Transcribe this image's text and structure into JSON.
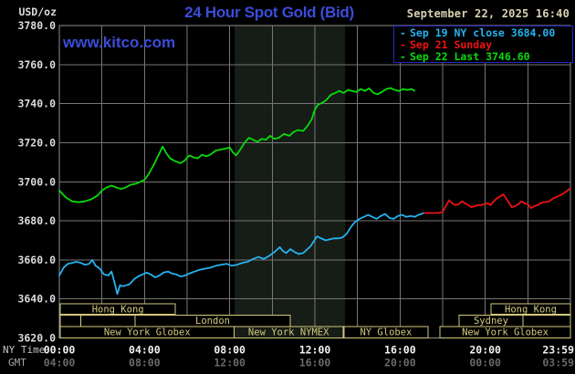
{
  "header": {
    "units_label": "USD/oz",
    "title": "24 Hour Spot Gold (Bid)",
    "datetime": "September 22, 2025 16:40",
    "watermark": "www.kitco.com"
  },
  "legend": {
    "items": [
      {
        "label": "Sep 19 NY close 3684.00",
        "color": "#25b2f0"
      },
      {
        "label": "Sep 21 Sunday",
        "color": "#ee1212"
      },
      {
        "label": "Sep 22 Last 3746.60",
        "color": "#08dc08"
      }
    ]
  },
  "colors": {
    "background": "#000000",
    "title_blue": "#3b4cd8",
    "date_text": "#d9d2b2",
    "axis_text": "#dcdcdc",
    "grid": "#767676",
    "border": "#8e8e8e",
    "band": "#161c16",
    "khaki": "#d2c97c",
    "ny_time_label": "#c6c6c6",
    "ny_tick": "#f2f2f2",
    "gmt_label": "#a8a8a8",
    "gmt_tick": "#696969",
    "legend_border": "#2626cc"
  },
  "axes": {
    "y_ticks": [
      "3780.0",
      "3760.0",
      "3740.0",
      "3720.0",
      "3700.0",
      "3680.0",
      "3660.0",
      "3640.0",
      "3620.0"
    ],
    "x_rows": [
      {
        "label": "NY Time",
        "ticks": [
          "00:00",
          "04:00",
          "08:00",
          "12:00",
          "16:00",
          "20:00",
          "23:59"
        ]
      },
      {
        "label": "GMT",
        "ticks": [
          "04:00",
          "08:00",
          "12:00",
          "16:00",
          "20:00",
          "00:00",
          "03:59"
        ]
      }
    ]
  },
  "sessions": {
    "rows": [
      {
        "boxes": [
          {
            "label": "Hong Kong",
            "from_h": 0.05,
            "to_h": 5.45
          },
          {
            "label": "Hong Kong",
            "from_h": 20.27,
            "to_h": 24.0
          }
        ]
      },
      {
        "boxes": [
          {
            "label": "",
            "from_h": 0.05,
            "to_h": 1.0
          },
          {
            "label": "",
            "from_h": 1.0,
            "to_h": 3.56
          },
          {
            "label": "London",
            "from_h": 3.56,
            "to_h": 10.84
          },
          {
            "label": "Sydney",
            "from_h": 18.77,
            "to_h": 21.77
          },
          {
            "label": "",
            "from_h": 21.77,
            "to_h": 24.0
          }
        ]
      },
      {
        "boxes": [
          {
            "label": "New York Globex",
            "from_h": 0.05,
            "to_h": 8.2
          },
          {
            "label": "New York NYMEX",
            "from_h": 8.2,
            "to_h": 13.33
          },
          {
            "label": "NY Globex",
            "from_h": 13.37,
            "to_h": 17.31
          },
          {
            "label": "New York Globex",
            "from_h": 17.87,
            "to_h": 24.0
          }
        ]
      }
    ]
  },
  "chart_data": {
    "type": "line",
    "title": "24 Hour Spot Gold (Bid)",
    "xlabel": "NY Time (hours 00:00-23:59)",
    "ylabel": "USD/oz",
    "ylim": [
      3620,
      3780
    ],
    "ytick_step": 20,
    "xlim_hours": [
      0,
      24
    ],
    "xtick_hours": [
      0,
      4,
      8,
      12,
      16,
      20,
      23.983
    ],
    "xgrid_step_hours": 2,
    "grid": true,
    "legend_position": "top-right",
    "highlight_band": {
      "name": "NYMEX session",
      "from_h": 8.23,
      "to_h": 13.42,
      "color": "#161c16"
    },
    "series": [
      {
        "name": "Sep 19 NY close 3684.00",
        "color": "#25b2f0",
        "points": [
          [
            0.0,
            3652
          ],
          [
            0.2,
            3656
          ],
          [
            0.4,
            3658
          ],
          [
            0.6,
            3658.5
          ],
          [
            0.8,
            3659
          ],
          [
            1.0,
            3658.5
          ],
          [
            1.2,
            3657.5
          ],
          [
            1.4,
            3658
          ],
          [
            1.55,
            3660
          ],
          [
            1.7,
            3657
          ],
          [
            1.9,
            3655.5
          ],
          [
            2.1,
            3652.5
          ],
          [
            2.3,
            3652
          ],
          [
            2.45,
            3654
          ],
          [
            2.6,
            3648
          ],
          [
            2.72,
            3642.5
          ],
          [
            2.85,
            3647
          ],
          [
            3.0,
            3646.5
          ],
          [
            3.15,
            3647
          ],
          [
            3.3,
            3647.5
          ],
          [
            3.5,
            3650
          ],
          [
            3.7,
            3651.5
          ],
          [
            3.9,
            3652.5
          ],
          [
            4.1,
            3653.5
          ],
          [
            4.3,
            3652.5
          ],
          [
            4.5,
            3651
          ],
          [
            4.7,
            3652
          ],
          [
            4.9,
            3653.5
          ],
          [
            5.1,
            3654
          ],
          [
            5.3,
            3653
          ],
          [
            5.5,
            3652.5
          ],
          [
            5.7,
            3651.5
          ],
          [
            5.9,
            3652
          ],
          [
            6.1,
            3653
          ],
          [
            6.35,
            3654
          ],
          [
            6.6,
            3655
          ],
          [
            6.85,
            3655.5
          ],
          [
            7.1,
            3656
          ],
          [
            7.35,
            3657
          ],
          [
            7.6,
            3657.5
          ],
          [
            7.85,
            3658
          ],
          [
            8.1,
            3657
          ],
          [
            8.35,
            3657.5
          ],
          [
            8.6,
            3658.5
          ],
          [
            8.85,
            3659
          ],
          [
            9.1,
            3660.5
          ],
          [
            9.35,
            3661.5
          ],
          [
            9.6,
            3660.5
          ],
          [
            9.85,
            3662
          ],
          [
            10.1,
            3664
          ],
          [
            10.35,
            3666.5
          ],
          [
            10.5,
            3664.5
          ],
          [
            10.65,
            3663.5
          ],
          [
            10.85,
            3665.5
          ],
          [
            11.05,
            3664
          ],
          [
            11.25,
            3663
          ],
          [
            11.45,
            3663.5
          ],
          [
            11.65,
            3665.5
          ],
          [
            11.8,
            3667
          ],
          [
            11.95,
            3669.5
          ],
          [
            12.1,
            3672
          ],
          [
            12.3,
            3671
          ],
          [
            12.5,
            3670
          ],
          [
            12.7,
            3670.5
          ],
          [
            12.9,
            3671
          ],
          [
            13.1,
            3671
          ],
          [
            13.3,
            3671.5
          ],
          [
            13.5,
            3673.5
          ],
          [
            13.7,
            3677
          ],
          [
            13.9,
            3679.5
          ],
          [
            14.1,
            3681
          ],
          [
            14.3,
            3682
          ],
          [
            14.5,
            3683
          ],
          [
            14.7,
            3682
          ],
          [
            14.9,
            3681
          ],
          [
            15.1,
            3682.5
          ],
          [
            15.3,
            3683.5
          ],
          [
            15.5,
            3681.5
          ],
          [
            15.7,
            3681
          ],
          [
            15.9,
            3682.5
          ],
          [
            16.1,
            3683
          ],
          [
            16.3,
            3682
          ],
          [
            16.5,
            3682.5
          ],
          [
            16.7,
            3682
          ],
          [
            16.85,
            3683
          ],
          [
            17.0,
            3683.5
          ],
          [
            17.1,
            3684
          ]
        ]
      },
      {
        "name": "Sep 21 Sunday",
        "color": "#ee1212",
        "points": [
          [
            17.15,
            3684
          ],
          [
            17.5,
            3684
          ],
          [
            17.8,
            3684
          ],
          [
            18.0,
            3684.5
          ],
          [
            18.15,
            3687.5
          ],
          [
            18.3,
            3690.5
          ],
          [
            18.45,
            3689
          ],
          [
            18.6,
            3688
          ],
          [
            18.75,
            3688.5
          ],
          [
            18.9,
            3690
          ],
          [
            19.05,
            3689
          ],
          [
            19.2,
            3688
          ],
          [
            19.35,
            3687
          ],
          [
            19.5,
            3687.5
          ],
          [
            19.65,
            3688
          ],
          [
            19.8,
            3688
          ],
          [
            19.95,
            3688.5
          ],
          [
            20.1,
            3689
          ],
          [
            20.25,
            3688
          ],
          [
            20.4,
            3690
          ],
          [
            20.55,
            3691.5
          ],
          [
            20.7,
            3692.5
          ],
          [
            20.85,
            3693.5
          ],
          [
            20.95,
            3692
          ],
          [
            21.1,
            3689.5
          ],
          [
            21.25,
            3687
          ],
          [
            21.4,
            3687.5
          ],
          [
            21.55,
            3688.5
          ],
          [
            21.7,
            3690
          ],
          [
            21.85,
            3689
          ],
          [
            22.0,
            3688.5
          ],
          [
            22.15,
            3686.5
          ],
          [
            22.3,
            3687.5
          ],
          [
            22.45,
            3688
          ],
          [
            22.6,
            3689
          ],
          [
            22.75,
            3689.5
          ],
          [
            23.0,
            3690
          ],
          [
            23.2,
            3691.5
          ],
          [
            23.4,
            3692.5
          ],
          [
            23.6,
            3693.5
          ],
          [
            23.8,
            3695
          ],
          [
            23.98,
            3696.5
          ]
        ]
      },
      {
        "name": "Sep 22 Last 3746.60",
        "color": "#08dc08",
        "points": [
          [
            0.0,
            3695.5
          ],
          [
            0.3,
            3692
          ],
          [
            0.6,
            3690
          ],
          [
            0.9,
            3689.5
          ],
          [
            1.2,
            3690
          ],
          [
            1.5,
            3691
          ],
          [
            1.8,
            3693
          ],
          [
            2.0,
            3695.5
          ],
          [
            2.2,
            3697
          ],
          [
            2.45,
            3698
          ],
          [
            2.7,
            3697
          ],
          [
            2.9,
            3696.3
          ],
          [
            3.1,
            3697
          ],
          [
            3.35,
            3698.5
          ],
          [
            3.6,
            3699
          ],
          [
            3.8,
            3700
          ],
          [
            4.0,
            3701
          ],
          [
            4.2,
            3704
          ],
          [
            4.45,
            3709
          ],
          [
            4.65,
            3713.5
          ],
          [
            4.85,
            3718
          ],
          [
            5.0,
            3715
          ],
          [
            5.2,
            3712
          ],
          [
            5.45,
            3710.5
          ],
          [
            5.7,
            3709.5
          ],
          [
            5.9,
            3711
          ],
          [
            6.1,
            3713.5
          ],
          [
            6.3,
            3712.5
          ],
          [
            6.5,
            3712
          ],
          [
            6.7,
            3713.8
          ],
          [
            6.9,
            3713
          ],
          [
            7.1,
            3714
          ],
          [
            7.35,
            3716
          ],
          [
            7.6,
            3716.5
          ],
          [
            7.8,
            3717
          ],
          [
            8.0,
            3717.5
          ],
          [
            8.15,
            3715
          ],
          [
            8.3,
            3713.5
          ],
          [
            8.5,
            3716.5
          ],
          [
            8.7,
            3720
          ],
          [
            8.9,
            3722.5
          ],
          [
            9.1,
            3721.5
          ],
          [
            9.3,
            3720.5
          ],
          [
            9.5,
            3722
          ],
          [
            9.7,
            3721.5
          ],
          [
            9.9,
            3723.5
          ],
          [
            10.1,
            3722
          ],
          [
            10.3,
            3722.5
          ],
          [
            10.55,
            3724.5
          ],
          [
            10.8,
            3723.5
          ],
          [
            11.0,
            3725.5
          ],
          [
            11.2,
            3726.5
          ],
          [
            11.45,
            3726
          ],
          [
            11.65,
            3728.5
          ],
          [
            11.85,
            3732
          ],
          [
            12.0,
            3737
          ],
          [
            12.15,
            3739.5
          ],
          [
            12.35,
            3740.5
          ],
          [
            12.55,
            3742
          ],
          [
            12.75,
            3744.5
          ],
          [
            12.95,
            3745.5
          ],
          [
            13.15,
            3746.5
          ],
          [
            13.35,
            3745.5
          ],
          [
            13.55,
            3747
          ],
          [
            13.75,
            3746.5
          ],
          [
            13.95,
            3746
          ],
          [
            14.15,
            3747.5
          ],
          [
            14.35,
            3746.5
          ],
          [
            14.55,
            3747.8
          ],
          [
            14.75,
            3745.5
          ],
          [
            14.95,
            3744.8
          ],
          [
            15.15,
            3746
          ],
          [
            15.35,
            3747.5
          ],
          [
            15.55,
            3748
          ],
          [
            15.75,
            3747
          ],
          [
            15.95,
            3746.5
          ],
          [
            16.15,
            3747.5
          ],
          [
            16.35,
            3747
          ],
          [
            16.55,
            3747.5
          ],
          [
            16.67,
            3746.6
          ]
        ]
      }
    ]
  }
}
